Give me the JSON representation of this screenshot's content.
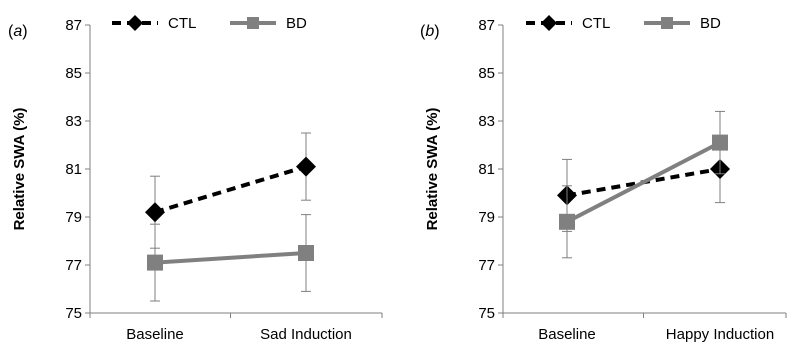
{
  "colors": {
    "ctl": "#000000",
    "bd": "#808080",
    "error_bar": "#7f7f7f",
    "axis": "#7f7f7f"
  },
  "chart_data": [
    {
      "type": "line",
      "panel_label": "a",
      "categories": [
        "Baseline",
        "Sad Induction"
      ],
      "ylabel": "Relative SWA (%)",
      "ylim": [
        75,
        87
      ],
      "yticks": [
        75,
        77,
        79,
        81,
        83,
        85,
        87
      ],
      "legend": "top",
      "grid": false,
      "series": [
        {
          "name": "CTL",
          "marker": "diamond",
          "line_style": "dashed",
          "color": "#000000",
          "values": [
            79.2,
            81.1
          ],
          "error": [
            1.5,
            1.4
          ]
        },
        {
          "name": "BD",
          "marker": "square",
          "line_style": "solid",
          "color": "#808080",
          "values": [
            77.1,
            77.5
          ],
          "error": [
            1.6,
            1.6
          ]
        }
      ]
    },
    {
      "type": "line",
      "panel_label": "b",
      "categories": [
        "Baseline",
        "Happy Induction"
      ],
      "ylabel": "Relative SWA (%)",
      "ylim": [
        75,
        87
      ],
      "yticks": [
        75,
        77,
        79,
        81,
        83,
        85,
        87
      ],
      "legend": "top",
      "grid": false,
      "series": [
        {
          "name": "CTL",
          "marker": "diamond",
          "line_style": "dashed",
          "color": "#000000",
          "values": [
            79.9,
            81.0
          ],
          "error": [
            1.5,
            1.4
          ]
        },
        {
          "name": "BD",
          "marker": "square",
          "line_style": "solid",
          "color": "#808080",
          "values": [
            78.8,
            82.1
          ],
          "error": [
            1.5,
            1.3
          ]
        }
      ]
    }
  ]
}
